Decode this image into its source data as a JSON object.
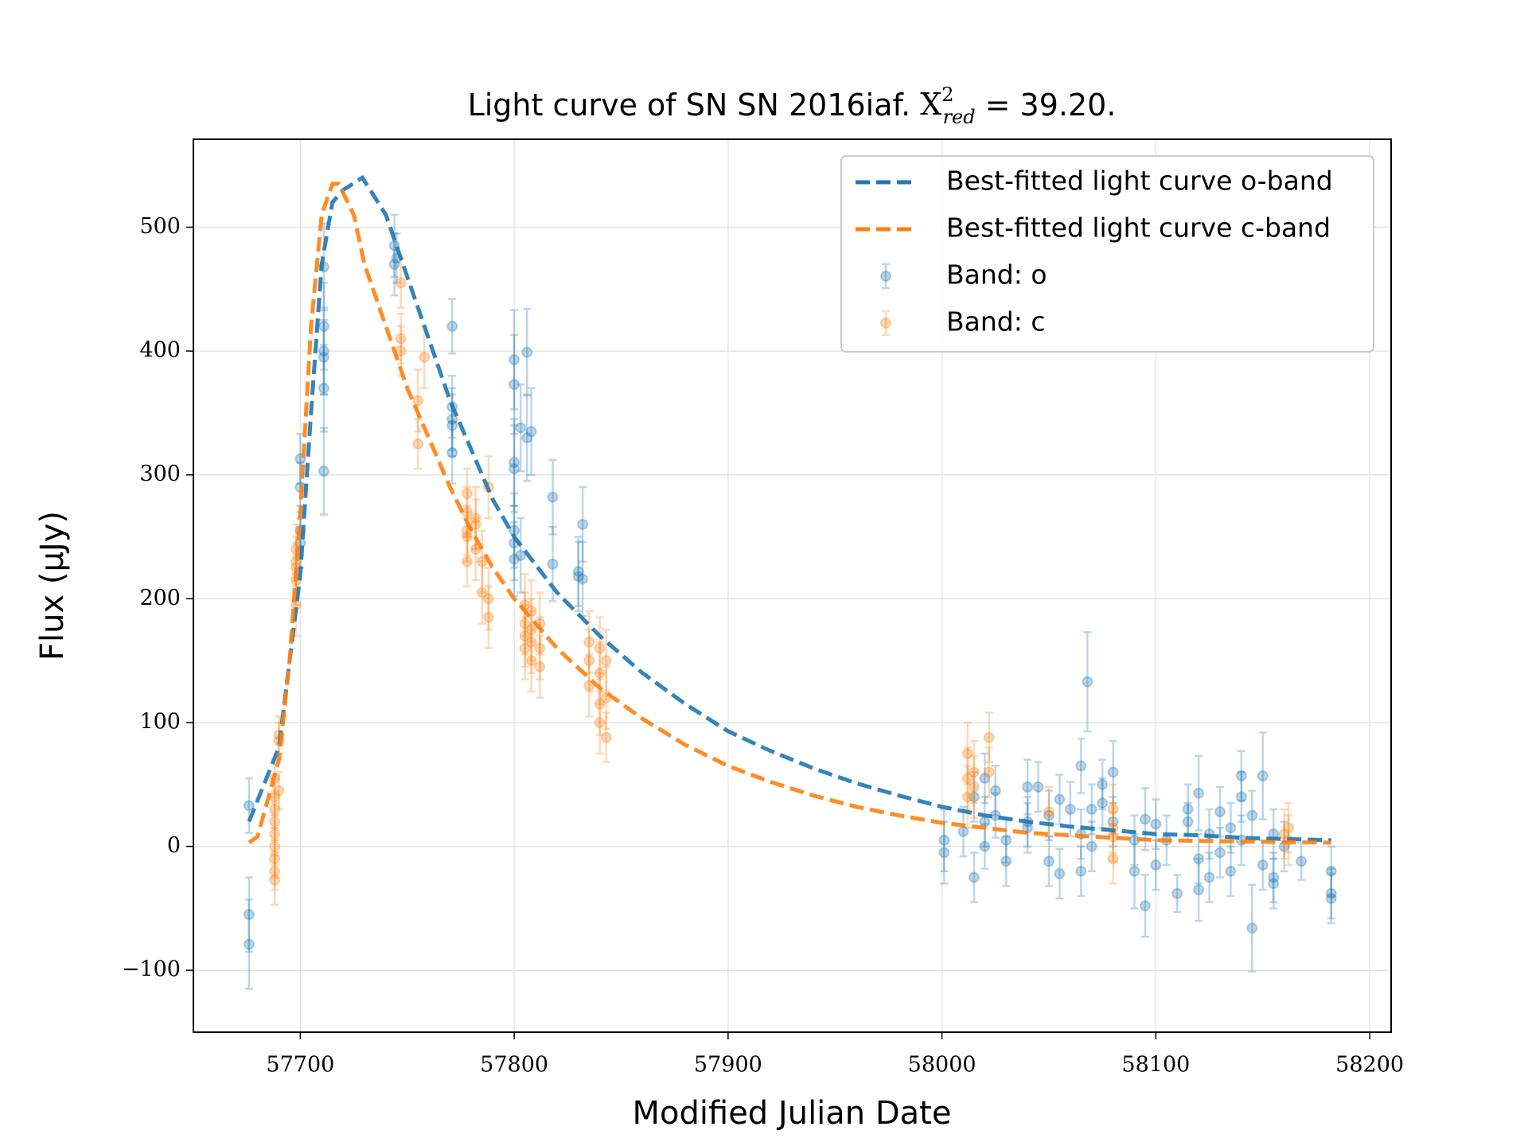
{
  "chart_data": {
    "type": "line",
    "title": "Light curve of SN SN 2016iaf.",
    "title_symbol": "X",
    "title_superscript": "2",
    "title_subscript": "red",
    "title_suffix": "= 39.20.",
    "x_label": "Modified Julian Date",
    "y_label": "Flux (μJy)",
    "xlim": [
      57650,
      58210
    ],
    "ylim": [
      -150,
      571
    ],
    "xticks": [
      57700,
      57800,
      57900,
      58000,
      58100,
      58200
    ],
    "yticks": [
      {
        "value": -100,
        "label": "−100"
      },
      0,
      100,
      200,
      300,
      400,
      500
    ],
    "grid": true,
    "legend": "upper right",
    "series": [
      {
        "name": "Best-fitted light curve o-band",
        "style": "dashed",
        "color": "#1f77b4",
        "x": [
          57676,
          57690,
          57700,
          57705,
          57710,
          57715,
          57720,
          57729,
          57740,
          57750,
          57760,
          57770,
          57780,
          57790,
          57800,
          57820,
          57840,
          57860,
          57880,
          57900,
          57920,
          57940,
          57960,
          57980,
          58000,
          58020,
          58040,
          58060,
          58080,
          58100,
          58120,
          58140,
          58160,
          58182
        ],
        "values": [
          20,
          80,
          220,
          350,
          470,
          520,
          530,
          540,
          510,
          460,
          410,
          360,
          320,
          280,
          250,
          205,
          170,
          140,
          115,
          93,
          77,
          63,
          51,
          41,
          32,
          25,
          20,
          16,
          13,
          10,
          9,
          7,
          6,
          5
        ]
      },
      {
        "name": "Best-fitted light curve c-band",
        "style": "dashed",
        "color": "#ff7f0e",
        "x": [
          57676,
          57680,
          57690,
          57695,
          57700,
          57705,
          57710,
          57715,
          57718,
          57725,
          57730,
          57740,
          57750,
          57760,
          57770,
          57780,
          57790,
          57800,
          57820,
          57840,
          57860,
          57880,
          57900,
          57920,
          57940,
          57960,
          57980,
          58000,
          58020,
          58040,
          58060,
          58080,
          58100,
          58120,
          58140,
          58160,
          58182
        ],
        "values": [
          3,
          8,
          70,
          150,
          270,
          420,
          510,
          535,
          535,
          510,
          470,
          420,
          370,
          330,
          290,
          255,
          225,
          200,
          160,
          128,
          103,
          82,
          65,
          52,
          41,
          32,
          25,
          19,
          15,
          11,
          9,
          7,
          5,
          4.5,
          4,
          3.5,
          3
        ]
      },
      {
        "name": "Band: o",
        "style": "errorbar",
        "color": "#1f77b4",
        "x": [
          57676,
          57676,
          57676,
          57700,
          57700,
          57700,
          57700,
          57711,
          57711,
          57711,
          57711,
          57711,
          57711,
          57744,
          57744,
          57745,
          57771,
          57771,
          57771,
          57771,
          57771,
          57800,
          57800,
          57800,
          57800,
          57800,
          57800,
          57800,
          57803,
          57803,
          57806,
          57806,
          57808,
          57818,
          57818,
          57830,
          57830,
          57832,
          57832,
          58001,
          58001,
          58010,
          58015,
          58015,
          58020,
          58020,
          58020,
          58025,
          58025,
          58030,
          58030,
          58040,
          58040,
          58040,
          58045,
          58050,
          58050,
          58055,
          58055,
          58060,
          58065,
          58065,
          58065,
          58068,
          58070,
          58070,
          58075,
          58075,
          58080,
          58080,
          58090,
          58090,
          58095,
          58095,
          58100,
          58100,
          58105,
          58110,
          58115,
          58115,
          58120,
          58120,
          58120,
          58125,
          58125,
          58130,
          58130,
          58135,
          58135,
          58140,
          58140,
          58140,
          58145,
          58145,
          58150,
          58150,
          58155,
          58155,
          58155,
          58160,
          58168,
          58182,
          58182,
          58182
        ],
        "values": [
          33,
          -55,
          -79,
          245,
          255,
          290,
          313,
          303,
          370,
          400,
          420,
          468,
          395,
          485,
          470,
          475,
          420,
          345,
          340,
          355,
          318,
          393,
          373,
          310,
          305,
          255,
          245,
          232,
          338,
          235,
          399,
          330,
          335,
          282,
          228,
          222,
          218,
          260,
          216,
          5,
          -5,
          12,
          -25,
          40,
          0,
          55,
          20,
          45,
          25,
          -12,
          5,
          48,
          15,
          20,
          48,
          -12,
          25,
          -22,
          38,
          30,
          65,
          -20,
          10,
          133,
          30,
          0,
          50,
          35,
          60,
          20,
          -20,
          5,
          -48,
          22,
          -15,
          18,
          5,
          -38,
          20,
          30,
          -10,
          -35,
          43,
          -25,
          10,
          28,
          -5,
          -20,
          15,
          57,
          40,
          5,
          -66,
          25,
          57,
          -15,
          -30,
          10,
          -25,
          0,
          -12,
          -20,
          -38,
          -42
        ],
        "errors": [
          22,
          30,
          36,
          20,
          20,
          20,
          20,
          35,
          35,
          35,
          35,
          35,
          30,
          25,
          25,
          20,
          22,
          25,
          25,
          25,
          25,
          40,
          40,
          35,
          35,
          30,
          30,
          30,
          35,
          30,
          35,
          35,
          35,
          30,
          30,
          28,
          28,
          30,
          30,
          25,
          25,
          20,
          20,
          20,
          18,
          20,
          20,
          20,
          18,
          20,
          18,
          22,
          20,
          20,
          20,
          20,
          20,
          20,
          20,
          22,
          22,
          20,
          20,
          40,
          20,
          20,
          20,
          20,
          25,
          20,
          30,
          20,
          25,
          25,
          20,
          20,
          20,
          15,
          15,
          20,
          20,
          25,
          30,
          20,
          20,
          20,
          20,
          20,
          20,
          20,
          20,
          20,
          35,
          20,
          35,
          20,
          20,
          20,
          20,
          20,
          15,
          20,
          20,
          20
        ]
      },
      {
        "name": "Band: c",
        "style": "errorbar",
        "color": "#ff7f0e",
        "x": [
          57688,
          57688,
          57688,
          57688,
          57688,
          57688,
          57688,
          57688,
          57688,
          57690,
          57690,
          57690,
          57698,
          57698,
          57698,
          57698,
          57698,
          57747,
          57747,
          57747,
          57755,
          57755,
          57758,
          57778,
          57778,
          57778,
          57778,
          57778,
          57782,
          57782,
          57782,
          57785,
          57785,
          57788,
          57788,
          57788,
          57805,
          57805,
          57805,
          57805,
          57808,
          57808,
          57808,
          57808,
          57812,
          57812,
          57812,
          57835,
          57835,
          57835,
          57840,
          57840,
          57840,
          57840,
          57843,
          57843,
          57843,
          58012,
          58012,
          58012,
          58015,
          58015,
          58022,
          58022,
          58050,
          58080,
          58080,
          58080,
          58080,
          58160,
          58162,
          58162
        ],
        "values": [
          40,
          30,
          20,
          10,
          0,
          -10,
          -20,
          -27,
          55,
          90,
          85,
          45,
          240,
          230,
          215,
          195,
          225,
          455,
          410,
          400,
          360,
          325,
          395,
          285,
          270,
          255,
          230,
          250,
          265,
          240,
          260,
          230,
          205,
          290,
          185,
          200,
          195,
          180,
          170,
          160,
          190,
          165,
          150,
          175,
          180,
          160,
          145,
          165,
          150,
          130,
          160,
          140,
          115,
          100,
          150,
          120,
          88,
          75,
          55,
          40,
          60,
          48,
          88,
          60,
          28,
          30,
          15,
          -10,
          8,
          10,
          15,
          5
        ],
        "errors": [
          15,
          15,
          15,
          15,
          15,
          15,
          15,
          20,
          15,
          15,
          15,
          15,
          20,
          20,
          20,
          25,
          20,
          20,
          20,
          20,
          25,
          20,
          25,
          20,
          20,
          20,
          20,
          20,
          25,
          25,
          20,
          25,
          25,
          25,
          25,
          25,
          25,
          25,
          25,
          25,
          25,
          25,
          25,
          25,
          25,
          25,
          25,
          25,
          25,
          25,
          25,
          25,
          25,
          25,
          25,
          25,
          20,
          25,
          25,
          25,
          25,
          25,
          20,
          20,
          20,
          20,
          20,
          20,
          20,
          20,
          20,
          20
        ]
      }
    ]
  }
}
